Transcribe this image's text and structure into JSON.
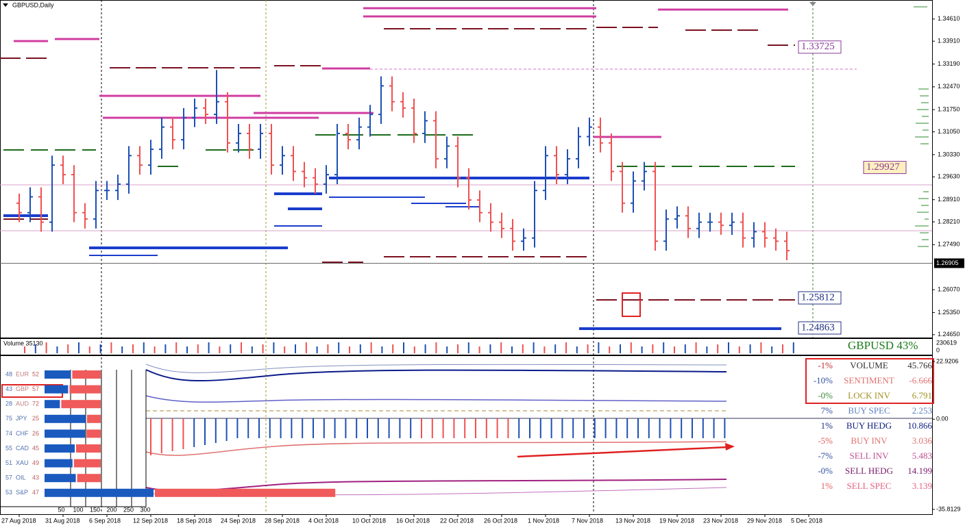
{
  "window_title": "GBPUSD,Daily",
  "price_chart": {
    "ylim": [
      1.2456,
      1.3521
    ],
    "yticks": [
      {
        "value": 1.3461,
        "label": "1.34610"
      },
      {
        "value": 1.3391,
        "label": "1.33910"
      },
      {
        "value": 1.3319,
        "label": "1.33190"
      },
      {
        "value": 1.3247,
        "label": "1.32470"
      },
      {
        "value": 1.3175,
        "label": "1.31750"
      },
      {
        "value": 1.3105,
        "label": "1.31050"
      },
      {
        "value": 1.3033,
        "label": "1.30330"
      },
      {
        "value": 1.2963,
        "label": "1.29630"
      },
      {
        "value": 1.2891,
        "label": "1.28910"
      },
      {
        "value": 1.2821,
        "label": "1.28210"
      },
      {
        "value": 1.2749,
        "label": "1.27490"
      },
      {
        "value": 1.2607,
        "label": "1.26070"
      },
      {
        "value": 1.2535,
        "label": "1.25350"
      },
      {
        "value": 1.2465,
        "label": "1.24650"
      }
    ],
    "current_price": {
      "value": 1.26905,
      "label": "1.26905"
    },
    "level_boxes": [
      {
        "value": 1.33725,
        "label": "1.33725"
      },
      {
        "value": 1.29927,
        "label": "1.29927"
      },
      {
        "value": 1.25812,
        "label": "1.25812"
      },
      {
        "value": 1.24863,
        "label": "1.24863"
      }
    ],
    "bars": [
      [
        1.288,
        1.291,
        1.282,
        1.285
      ],
      [
        1.285,
        1.293,
        1.282,
        1.29
      ],
      [
        1.29,
        1.293,
        1.279,
        1.282
      ],
      [
        1.282,
        1.303,
        1.279,
        1.3
      ],
      [
        1.3,
        1.303,
        1.294,
        1.297
      ],
      [
        1.297,
        1.3,
        1.282,
        1.285
      ],
      [
        1.285,
        1.288,
        1.28,
        1.283
      ],
      [
        1.283,
        1.295,
        1.28,
        1.292
      ],
      [
        1.292,
        1.295,
        1.289,
        1.292
      ],
      [
        1.292,
        1.297,
        1.289,
        1.294
      ],
      [
        1.294,
        1.306,
        1.291,
        1.303
      ],
      [
        1.303,
        1.306,
        1.297,
        1.3
      ],
      [
        1.3,
        1.308,
        1.297,
        1.305
      ],
      [
        1.305,
        1.315,
        1.302,
        1.312
      ],
      [
        1.312,
        1.315,
        1.305,
        1.308
      ],
      [
        1.308,
        1.318,
        1.305,
        1.315
      ],
      [
        1.315,
        1.321,
        1.312,
        1.318
      ],
      [
        1.318,
        1.321,
        1.313,
        1.316
      ],
      [
        1.316,
        1.33,
        1.313,
        1.32
      ],
      [
        1.32,
        1.323,
        1.304,
        1.307
      ],
      [
        1.307,
        1.313,
        1.304,
        1.31
      ],
      [
        1.31,
        1.313,
        1.302,
        1.305
      ],
      [
        1.305,
        1.313,
        1.302,
        1.31
      ],
      [
        1.31,
        1.313,
        1.297,
        1.3
      ],
      [
        1.3,
        1.306,
        1.297,
        1.303
      ],
      [
        1.303,
        1.306,
        1.295,
        1.298
      ],
      [
        1.298,
        1.301,
        1.293,
        1.296
      ],
      [
        1.296,
        1.299,
        1.291,
        1.294
      ],
      [
        1.294,
        1.3,
        1.291,
        1.297
      ],
      [
        1.297,
        1.313,
        1.294,
        1.31
      ],
      [
        1.31,
        1.313,
        1.305,
        1.308
      ],
      [
        1.308,
        1.315,
        1.305,
        1.312
      ],
      [
        1.312,
        1.319,
        1.309,
        1.316
      ],
      [
        1.316,
        1.328,
        1.313,
        1.325
      ],
      [
        1.325,
        1.328,
        1.317,
        1.32
      ],
      [
        1.32,
        1.323,
        1.315,
        1.318
      ],
      [
        1.318,
        1.321,
        1.307,
        1.31
      ],
      [
        1.31,
        1.317,
        1.307,
        1.314
      ],
      [
        1.314,
        1.317,
        1.299,
        1.302
      ],
      [
        1.302,
        1.309,
        1.299,
        1.306
      ],
      [
        1.306,
        1.309,
        1.293,
        1.296
      ],
      [
        1.296,
        1.299,
        1.286,
        1.289
      ],
      [
        1.289,
        1.292,
        1.282,
        1.285
      ],
      [
        1.285,
        1.288,
        1.279,
        1.282
      ],
      [
        1.282,
        1.285,
        1.277,
        1.28
      ],
      [
        1.28,
        1.283,
        1.273,
        1.276
      ],
      [
        1.276,
        1.28,
        1.273,
        1.277
      ],
      [
        1.277,
        1.295,
        1.274,
        1.292
      ],
      [
        1.292,
        1.306,
        1.289,
        1.303
      ],
      [
        1.303,
        1.306,
        1.294,
        1.297
      ],
      [
        1.297,
        1.305,
        1.294,
        1.302
      ],
      [
        1.302,
        1.312,
        1.299,
        1.309
      ],
      [
        1.309,
        1.315,
        1.306,
        1.312
      ],
      [
        1.312,
        1.315,
        1.304,
        1.307
      ],
      [
        1.307,
        1.31,
        1.295,
        1.298
      ],
      [
        1.298,
        1.301,
        1.285,
        1.288
      ],
      [
        1.288,
        1.298,
        1.285,
        1.295
      ],
      [
        1.295,
        1.301,
        1.292,
        1.298
      ],
      [
        1.298,
        1.301,
        1.273,
        1.276
      ],
      [
        1.276,
        1.286,
        1.273,
        1.283
      ],
      [
        1.283,
        1.287,
        1.28,
        1.284
      ],
      [
        1.284,
        1.287,
        1.277,
        1.28
      ],
      [
        1.28,
        1.285,
        1.277,
        1.282
      ],
      [
        1.282,
        1.285,
        1.279,
        1.282
      ],
      [
        1.282,
        1.285,
        1.278,
        1.281
      ],
      [
        1.281,
        1.285,
        1.278,
        1.282
      ],
      [
        1.282,
        1.285,
        1.274,
        1.277
      ],
      [
        1.277,
        1.282,
        1.274,
        1.279
      ],
      [
        1.279,
        1.282,
        1.274,
        1.277
      ],
      [
        1.277,
        1.28,
        1.273,
        1.276
      ],
      [
        1.276,
        1.279,
        1.27,
        1.273
      ]
    ],
    "dates": [
      "27 Aug 2018",
      "31 Aug 2018",
      "6 Sep 2018",
      "12 Sep 2018",
      "18 Sep 2018",
      "24 Sep 2018",
      "28 Sep 2018",
      "4 Oct 2018",
      "10 Oct 2018",
      "16 Oct 2018",
      "22 Oct 2018",
      "26 Oct 2018",
      "1 Nov 2018",
      "7 Nov 2018",
      "13 Nov 2018",
      "19 Nov 2018",
      "23 Nov 2018",
      "29 Nov 2018",
      "5 Dec 2018"
    ]
  },
  "volume_panel": {
    "label": "Volume 35130",
    "max_label": "230619",
    "min_label": "0",
    "symbol_strength": "GBPUSD 43%"
  },
  "indicator_panel": {
    "ylim": [
      -35.8129,
      22.9206
    ],
    "yticks": [
      {
        "value": 22.9206,
        "label": "22.9206"
      },
      {
        "value": 0,
        "label": "0.00"
      },
      {
        "value": -35.8129,
        "label": "-35.8129"
      }
    ],
    "strength_rows": [
      {
        "left": 48,
        "name": "EUR",
        "right": 52
      },
      {
        "left": 43,
        "name": "GBP",
        "right": 57
      },
      {
        "left": 28,
        "name": "AUD",
        "right": 72
      },
      {
        "left": 75,
        "name": "JPY",
        "right": 25
      },
      {
        "left": 74,
        "name": "CHF",
        "right": 26
      },
      {
        "left": 55,
        "name": "CAD",
        "right": 45
      },
      {
        "left": 51,
        "name": "XAU",
        "right": 49
      },
      {
        "left": 57,
        "name": "OIL",
        "right": 43
      },
      {
        "left": 53,
        "name": "S&P",
        "right": 47
      }
    ],
    "scale_ticks": [
      50,
      100,
      150,
      200,
      250,
      300
    ],
    "table": [
      [
        "-1%",
        "VOLUME",
        "45.766"
      ],
      [
        "-10%",
        "SENTIMENT",
        "-6.666"
      ],
      [
        "-0%",
        "LOCK INV",
        "6.791"
      ],
      [
        "7%",
        "BUY SPEC",
        "2.253"
      ],
      [
        "1%",
        "BUY HEDG",
        "10.866"
      ],
      [
        "-5%",
        "BUY INV",
        "3.036"
      ],
      [
        "-7%",
        "SELL INV",
        "5.483"
      ],
      [
        "-0%",
        "SELL HEDG",
        "14.199"
      ],
      [
        "1%",
        "SELL SPEC",
        "3.139"
      ]
    ]
  }
}
